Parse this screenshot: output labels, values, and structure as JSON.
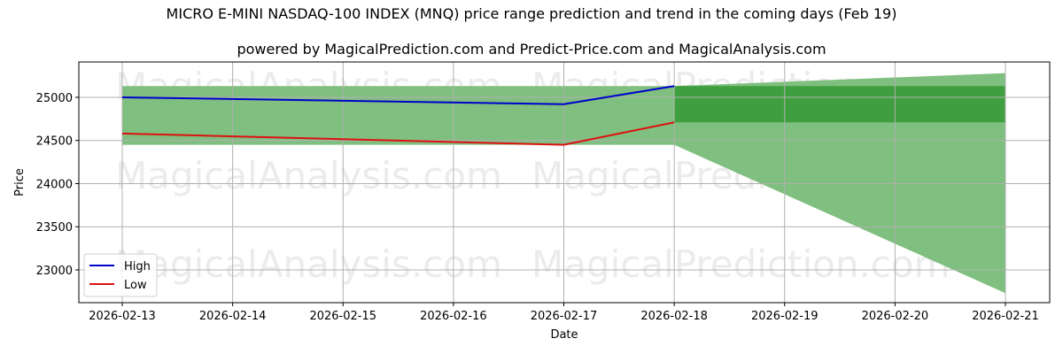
{
  "title": "MICRO E-MINI NASDAQ-100 INDEX (MNQ) price range prediction and trend in the coming days (Feb 19)",
  "subtitle": "powered by MagicalPrediction.com and Predict-Price.com and MagicalAnalysis.com",
  "watermarks": [
    "MagicalAnalysis.com",
    "MagicalPrediction.com"
  ],
  "colors": {
    "high": "#0000cc",
    "low": "#dd1111",
    "band_light": "#7fbf7f",
    "band_dark": "#3f9f3f",
    "grid": "#b0b0b0"
  },
  "chart_data": {
    "type": "line",
    "title": "MICRO E-MINI NASDAQ-100 INDEX (MNQ) price range prediction and trend in the coming days (Feb 19)",
    "subtitle": "powered by MagicalPrediction.com and Predict-Price.com and MagicalAnalysis.com",
    "xlabel": "Date",
    "ylabel": "Price",
    "x_ticks": [
      "2026-02-13",
      "2026-02-14",
      "2026-02-15",
      "2026-02-16",
      "2026-02-17",
      "2026-02-18",
      "2026-02-19",
      "2026-02-20",
      "2026-02-21"
    ],
    "y_ticks": [
      23000,
      23500,
      24000,
      24500,
      25000
    ],
    "ylim": [
      22620,
      25410
    ],
    "grid": true,
    "legend_position": "lower left",
    "series": [
      {
        "name": "High",
        "color": "#0000cc",
        "x": [
          "2026-02-13",
          "2026-02-17",
          "2026-02-18"
        ],
        "values": [
          25000,
          24920,
          25130
        ]
      },
      {
        "name": "Low",
        "color": "#dd1111",
        "x": [
          "2026-02-13",
          "2026-02-17",
          "2026-02-18"
        ],
        "values": [
          24580,
          24450,
          24710
        ]
      }
    ],
    "bands": [
      {
        "name": "historical range",
        "x": [
          "2026-02-13",
          "2026-02-18"
        ],
        "lower": [
          24450,
          24450
        ],
        "upper": [
          25130,
          25130
        ]
      },
      {
        "name": "predicted outer range",
        "x": [
          "2026-02-18",
          "2026-02-21"
        ],
        "lower": [
          24450,
          22730
        ],
        "upper": [
          25130,
          25280
        ]
      },
      {
        "name": "predicted inner range",
        "x": [
          "2026-02-18",
          "2026-02-21"
        ],
        "lower": [
          24710,
          24710
        ],
        "upper": [
          25130,
          25130
        ]
      }
    ]
  },
  "legend": [
    {
      "label": "High",
      "color": "#0000cc"
    },
    {
      "label": "Low",
      "color": "#dd1111"
    }
  ]
}
